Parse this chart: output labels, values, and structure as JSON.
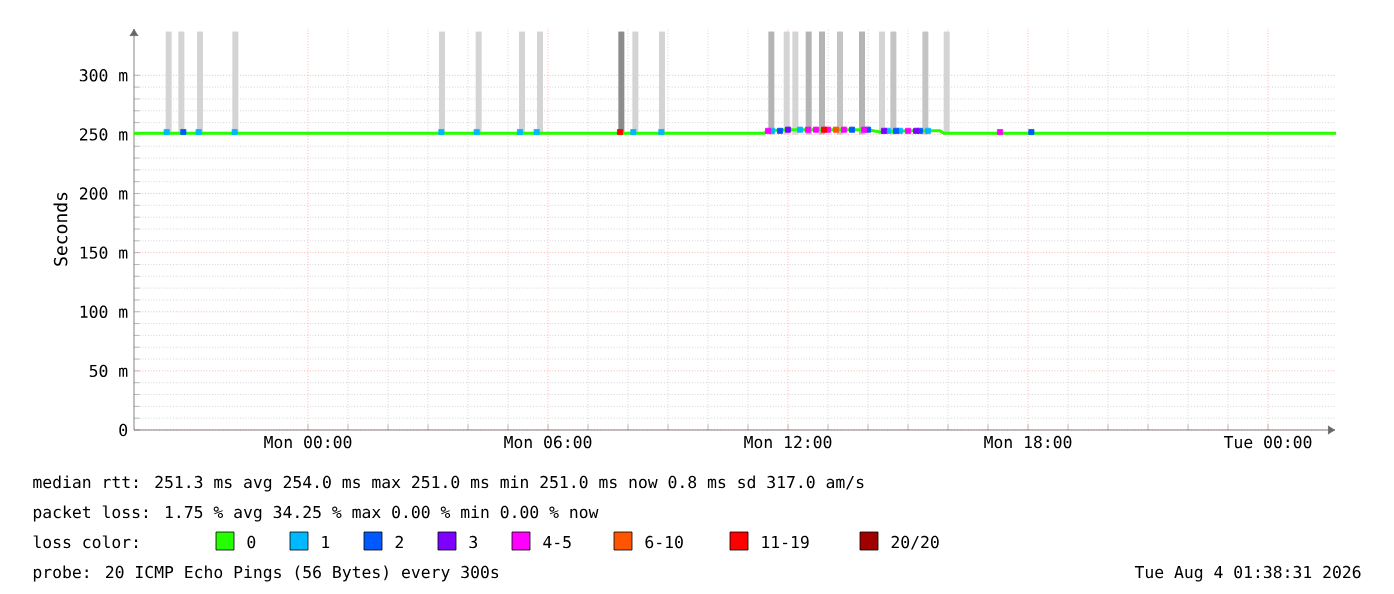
{
  "chart_data": {
    "type": "line",
    "ylabel": "Seconds",
    "xlim": [
      "2026-08-02T19:39",
      "2026-08-04T01:42"
    ],
    "xticks": [
      {
        "value": "2026-08-03T00:00",
        "label": "Mon 00:00"
      },
      {
        "value": "2026-08-03T06:00",
        "label": "Mon 06:00"
      },
      {
        "value": "2026-08-03T12:00",
        "label": "Mon 12:00"
      },
      {
        "value": "2026-08-03T18:00",
        "label": "Mon 18:00"
      },
      {
        "value": "2026-08-04T00:00",
        "label": "Tue 00:00"
      }
    ],
    "ylim": [
      0,
      340
    ],
    "yticks": [
      0,
      {
        "value": 50,
        "label": "50 m"
      },
      {
        "value": 100,
        "label": "100 m"
      },
      {
        "value": 150,
        "label": "150 m"
      },
      {
        "value": 200,
        "label": "200 m"
      },
      {
        "value": 250,
        "label": "250 m"
      },
      {
        "value": 300,
        "label": "300 m"
      }
    ],
    "grid": true,
    "legend": "bottom",
    "legend_title": "loss color:",
    "series": [
      {
        "type": "bar",
        "x": [
          "2026-08-02T20:31",
          "2026-08-02T20:50",
          "2026-08-02T21:18",
          "2026-08-02T22:11",
          "2026-08-03T03:21",
          "2026-08-03T04:16",
          "2026-08-03T05:21",
          "2026-08-03T05:48",
          "2026-08-03T07:50",
          "2026-08-03T08:11",
          "2026-08-03T08:51",
          "2026-08-03T11:35",
          "2026-08-03T11:58",
          "2026-08-03T12:11",
          "2026-08-03T12:31",
          "2026-08-03T12:51",
          "2026-08-03T13:18",
          "2026-08-03T13:51",
          "2026-08-03T14:21",
          "2026-08-03T14:38",
          "2026-08-03T15:26",
          "2026-08-03T15:58"
        ],
        "base": [
          250,
          250,
          250,
          250,
          250,
          250,
          250,
          250,
          250,
          250,
          250,
          250,
          250,
          250,
          250,
          250,
          250,
          250,
          250,
          250,
          250,
          250
        ],
        "values": [
          87,
          87,
          87,
          87,
          87,
          87,
          87,
          87,
          87,
          87,
          87,
          87,
          87,
          87,
          87,
          87,
          87,
          87,
          87,
          87,
          87,
          87
        ],
        "colors": [
          "#d4d4d4",
          "#d4d4d4",
          "#d4d4d4",
          "#d4d4d4",
          "#d4d4d4",
          "#d4d4d4",
          "#d4d4d4",
          "#d4d4d4",
          "#8c8c8c",
          "#d4d4d4",
          "#d4d4d4",
          "#b4b4b4",
          "#d4d4d4",
          "#d4d4d4",
          "#b4b4b4",
          "#b4b4b4",
          "#c4c4c4",
          "#b4b4b4",
          "#d4d4d4",
          "#c4c4c4",
          "#c4c4c4",
          "#d4d4d4"
        ]
      },
      {
        "name": "0",
        "color": "#26ff00",
        "x": [
          "2026-08-02T19:39",
          "2026-08-03T11:24",
          "2026-08-03T11:30",
          "2026-08-03T12:00",
          "2026-08-03T14:00",
          "2026-08-03T14:18",
          "2026-08-03T15:00",
          "2026-08-03T15:48",
          "2026-08-03T15:54",
          "2026-08-04T01:42"
        ],
        "values": [
          251,
          251,
          253,
          254,
          254,
          252,
          253,
          253,
          251,
          251
        ]
      },
      {
        "name": "1",
        "type": "scatter",
        "marker": "square",
        "color": "#00b8ff",
        "x": [
          "2026-08-02T20:28",
          "2026-08-02T21:16",
          "2026-08-02T22:10",
          "2026-08-03T03:20",
          "2026-08-03T04:13",
          "2026-08-03T05:18",
          "2026-08-03T05:43",
          "2026-08-03T08:08",
          "2026-08-03T08:50",
          "2026-08-03T11:36",
          "2026-08-03T12:18",
          "2026-08-03T14:30",
          "2026-08-03T14:48",
          "2026-08-03T15:30"
        ],
        "values": [
          252,
          252,
          252,
          252,
          252,
          252,
          252,
          252,
          252,
          253,
          254,
          253,
          253,
          253
        ]
      },
      {
        "name": "2",
        "type": "scatter",
        "marker": "square",
        "color": "#0059ff",
        "x": [
          "2026-08-02T20:53",
          "2026-08-03T11:48",
          "2026-08-03T13:36",
          "2026-08-03T14:00",
          "2026-08-03T14:42",
          "2026-08-03T15:18",
          "2026-08-03T18:05"
        ],
        "values": [
          252,
          253,
          254,
          254,
          253,
          253,
          252
        ]
      },
      {
        "name": "3",
        "type": "scatter",
        "marker": "square",
        "color": "#7e00ff",
        "x": [
          "2026-08-03T12:00",
          "2026-08-03T14:24",
          "2026-08-03T15:12"
        ],
        "values": [
          254,
          253,
          253
        ]
      },
      {
        "name": "4-5",
        "type": "scatter",
        "marker": "square",
        "color": "#ff00ff",
        "x": [
          "2026-08-03T11:30",
          "2026-08-03T12:30",
          "2026-08-03T12:42",
          "2026-08-03T13:00",
          "2026-08-03T13:24",
          "2026-08-03T13:54",
          "2026-08-03T15:00",
          "2026-08-03T17:18"
        ],
        "values": [
          253,
          254,
          254,
          254,
          254,
          254,
          253,
          252
        ]
      },
      {
        "name": "6-10",
        "type": "scatter",
        "marker": "square",
        "color": "#ff5500",
        "x": [
          "2026-08-03T13:12"
        ],
        "values": [
          254
        ]
      },
      {
        "name": "11-19",
        "type": "scatter",
        "marker": "square",
        "color": "#ff0000",
        "x": [
          "2026-08-03T07:48",
          "2026-08-03T12:54"
        ],
        "values": [
          252,
          254
        ]
      },
      {
        "name": "20/20",
        "type": "scatter",
        "marker": "square",
        "color": "#a10000"
      }
    ],
    "annotations": [
      "median rtt:  251.3 ms avg  254.0 ms max  251.0 ms min  251.0 ms now  0.8 ms sd  317.0   am/s",
      "packet loss: 1.75 % avg  34.25 % max  0.00 % min  0.00 % now",
      "probe:       20 ICMP Echo Pings (56 Bytes) every 300s",
      "Tue Aug  4 01:38:31 2026"
    ]
  }
}
